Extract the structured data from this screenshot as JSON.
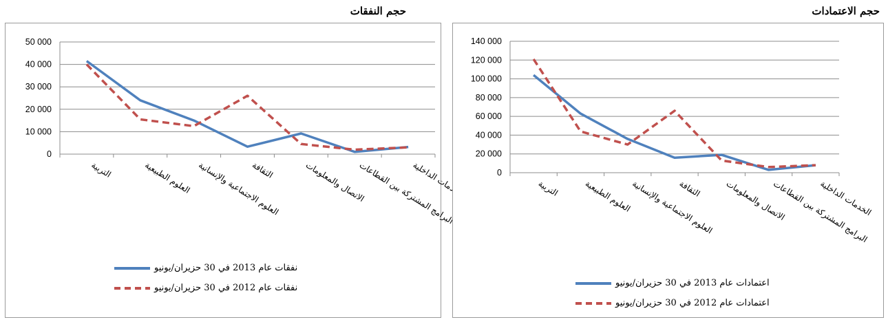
{
  "titles": {
    "right_panel": "حجم الاعتمادات",
    "left_panel": "حجم النفقات"
  },
  "colors": {
    "series_2013": "#4f81bd",
    "series_2012": "#c0504d",
    "grid": "#8c8c8c",
    "border": "#9a9a9a"
  },
  "legends": {
    "expenditures_2013": "نفقات عام 2013 في 30 حزيران/يونيو",
    "expenditures_2012": "نفقات عام 2012 في 30 حزيران/يونيو",
    "appropriations_2013": "اعتمادات عام 2013 في 30 حزيران/يونيو",
    "appropriations_2012": "اعتمادات عام 2012 في 30 حزيران/يونيو"
  },
  "chart_data": [
    {
      "id": "expenditures",
      "type": "line",
      "categories": [
        "التربية",
        "العلوم الطبيعية",
        "العلوم الاجتماعية والإنسانية",
        "الثقافة",
        "الاتصال والمعلومات",
        "البرامج المشتركة بين القطاعات",
        "الخدمات الداخلية"
      ],
      "ylim": [
        0,
        50000
      ],
      "yticks": [
        0,
        10000,
        20000,
        30000,
        40000,
        50000
      ],
      "ytick_labels": [
        "0",
        "10 000",
        "20 000",
        "30 000",
        "40 000",
        "50 000"
      ],
      "grid": true,
      "legend_position": "bottom",
      "series": [
        {
          "name": "نفقات عام 2013 في 30 حزيران/يونيو",
          "style": "solid",
          "values": [
            41500,
            24000,
            15000,
            3300,
            9200,
            1000,
            3200
          ]
        },
        {
          "name": "نفقات عام 2012 في 30 حزيران/يونيو",
          "style": "dashed",
          "values": [
            40000,
            15500,
            12500,
            26000,
            4500,
            2000,
            3000
          ]
        }
      ]
    },
    {
      "id": "appropriations",
      "type": "line",
      "categories": [
        "التربية",
        "العلوم الطبيعية",
        "العلوم الاجتماعية والإنسانية",
        "الثقافة",
        "الاتصال والمعلومات",
        "البرامج المشتركة بين القطاعات",
        "الخدمات الداخلية"
      ],
      "ylim": [
        0,
        140000
      ],
      "yticks": [
        0,
        20000,
        40000,
        60000,
        80000,
        100000,
        120000,
        140000
      ],
      "ytick_labels": [
        "0",
        "20 000",
        "40 000",
        "60 000",
        "80 000",
        "100 000",
        "120 000",
        "140 000"
      ],
      "grid": true,
      "legend_position": "bottom",
      "series": [
        {
          "name": "اعتمادات عام 2013 في 30 حزيران/يونيو",
          "style": "solid",
          "values": [
            104000,
            63000,
            36000,
            16000,
            19000,
            3000,
            8000
          ]
        },
        {
          "name": "اعتمادات عام 2012 في 30 حزيران/يونيو",
          "style": "dashed",
          "values": [
            121000,
            44000,
            30000,
            66000,
            13000,
            6000,
            8000
          ]
        }
      ]
    }
  ]
}
